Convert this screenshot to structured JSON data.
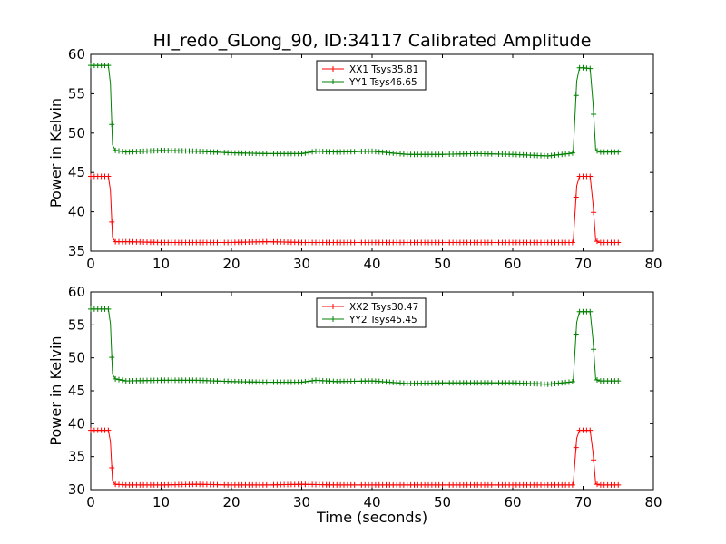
{
  "title": "HI_redo_GLong_90, ID:34117 Calibrated Amplitude",
  "xlabel": "Time (seconds)",
  "chart_data": [
    {
      "type": "line",
      "ylabel": "Power in Kelvin",
      "xlim": [
        0,
        80
      ],
      "ylim": [
        35,
        60
      ],
      "xticks": [
        "0",
        "10",
        "20",
        "30",
        "40",
        "50",
        "60",
        "70",
        "80"
      ],
      "yticks": [
        "35",
        "40",
        "45",
        "50",
        "55",
        "60"
      ],
      "grid": false,
      "legend_position": "top-center",
      "series": [
        {
          "name": "XX1 Tsys35.81",
          "color": "#ff0000",
          "x": [
            0,
            0.5,
            1,
            1.5,
            2,
            2.5,
            2.8,
            3.1,
            3.5,
            5,
            10,
            15,
            20,
            25,
            30,
            35,
            40,
            45,
            50,
            55,
            60,
            65,
            68,
            68.6,
            69.1,
            69.5,
            70,
            71,
            71.4,
            71.8,
            72.2,
            73,
            74,
            75
          ],
          "y": [
            44.5,
            44.5,
            44.5,
            44.5,
            44.5,
            44.5,
            42.7,
            36.7,
            36.2,
            36.2,
            36.1,
            36.1,
            36.1,
            36.2,
            36.1,
            36.1,
            36.1,
            36.1,
            36.1,
            36.1,
            36.1,
            36.1,
            36.1,
            36.1,
            43.3,
            44.5,
            44.5,
            44.5,
            41.1,
            36.4,
            36.1,
            36.1,
            36.1,
            36.1
          ]
        },
        {
          "name": "YY1 Tsys46.65",
          "color": "#008000",
          "x": [
            0,
            0.5,
            1,
            1.5,
            2,
            2.5,
            2.8,
            3.1,
            3.5,
            5,
            10,
            15,
            20,
            25,
            30,
            32,
            35,
            40,
            45,
            50,
            55,
            60,
            65,
            68,
            68.6,
            69.1,
            69.5,
            70,
            71,
            71.4,
            71.8,
            72.2,
            73,
            74,
            75
          ],
          "y": [
            58.6,
            58.6,
            58.6,
            58.6,
            58.6,
            58.6,
            56.3,
            48.5,
            47.8,
            47.6,
            47.8,
            47.7,
            47.5,
            47.4,
            47.4,
            47.7,
            47.6,
            47.7,
            47.3,
            47.3,
            47.4,
            47.3,
            47.1,
            47.4,
            47.5,
            56.6,
            58.3,
            58.3,
            58.2,
            53.9,
            47.9,
            47.6,
            47.6,
            47.6,
            47.6
          ]
        }
      ]
    },
    {
      "type": "line",
      "ylabel": "Power in Kelvin",
      "xlim": [
        0,
        80
      ],
      "ylim": [
        30,
        60
      ],
      "xticks": [
        "0",
        "10",
        "20",
        "30",
        "40",
        "50",
        "60",
        "70",
        "80"
      ],
      "yticks": [
        "30",
        "35",
        "40",
        "45",
        "50",
        "55",
        "60"
      ],
      "grid": false,
      "legend_position": "top-center",
      "series": [
        {
          "name": "XX2 Tsys30.47",
          "color": "#ff0000",
          "x": [
            0,
            0.5,
            1,
            1.5,
            2,
            2.5,
            2.8,
            3.1,
            3.5,
            5,
            10,
            15,
            20,
            25,
            30,
            35,
            40,
            45,
            50,
            55,
            60,
            65,
            68,
            68.6,
            69.1,
            69.5,
            70,
            71,
            71.4,
            71.8,
            72.2,
            73,
            74,
            75
          ],
          "y": [
            39.0,
            39.0,
            39.0,
            39.0,
            39.0,
            39.0,
            37.3,
            31.3,
            30.8,
            30.7,
            30.7,
            30.8,
            30.7,
            30.7,
            30.8,
            30.7,
            30.7,
            30.7,
            30.7,
            30.7,
            30.7,
            30.7,
            30.7,
            30.7,
            37.8,
            39.0,
            39.0,
            39.0,
            35.7,
            30.9,
            30.7,
            30.7,
            30.7,
            30.7
          ]
        },
        {
          "name": "YY2 Tsys45.45",
          "color": "#008000",
          "x": [
            0,
            0.5,
            1,
            1.5,
            2,
            2.5,
            2.8,
            3.1,
            3.5,
            5,
            10,
            15,
            20,
            25,
            30,
            32,
            35,
            40,
            45,
            50,
            55,
            60,
            65,
            68,
            68.6,
            69.1,
            69.5,
            70,
            71,
            71.4,
            71.8,
            72.2,
            73,
            74,
            75
          ],
          "y": [
            57.4,
            57.4,
            57.4,
            57.4,
            57.4,
            57.4,
            55.2,
            47.5,
            46.8,
            46.5,
            46.6,
            46.6,
            46.4,
            46.3,
            46.3,
            46.6,
            46.4,
            46.5,
            46.1,
            46.2,
            46.2,
            46.2,
            46.0,
            46.3,
            46.4,
            55.4,
            57.0,
            57.0,
            57.0,
            52.8,
            46.8,
            46.5,
            46.5,
            46.5,
            46.5
          ]
        }
      ]
    }
  ]
}
